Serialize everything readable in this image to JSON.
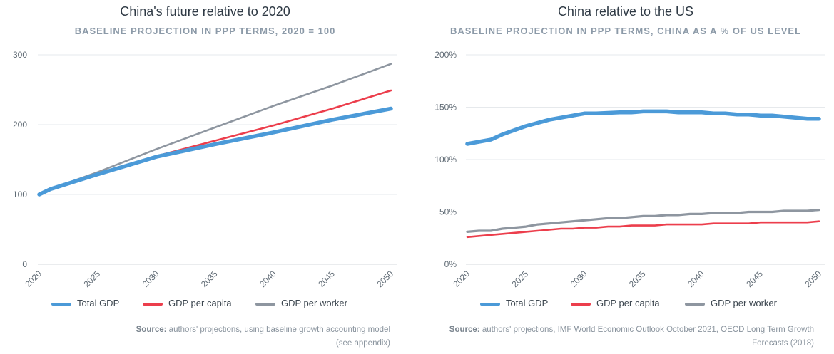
{
  "colors": {
    "total_gdp": "#4b9ad8",
    "gdp_per_capita": "#ec3e4c",
    "gdp_per_worker": "#8e96a0",
    "grid": "#e6e9ec",
    "tick_text": "#5f6a74"
  },
  "chart_data": [
    {
      "type": "line",
      "title": "China's future relative to 2020",
      "subtitle": "BASELINE PROJECTION IN PPP TERMS, 2020 = 100",
      "xlim": [
        2020,
        2050
      ],
      "ylim": [
        0,
        300
      ],
      "x_ticks": [
        "2020",
        "2025",
        "2030",
        "2035",
        "2040",
        "2045",
        "2050"
      ],
      "y_ticks": [
        "0",
        "100",
        "200",
        "300"
      ],
      "grid": true,
      "legend_position": "bottom",
      "series": [
        {
          "name": "Total GDP",
          "key": "total_gdp",
          "x": [
            2020,
            2021,
            2025,
            2030,
            2035,
            2040,
            2045,
            2050
          ],
          "y": [
            100,
            108,
            129,
            154,
            172,
            189,
            207,
            223
          ]
        },
        {
          "name": "GDP per capita",
          "key": "gdp_per_capita",
          "x": [
            2020,
            2021,
            2025,
            2030,
            2035,
            2040,
            2045,
            2050
          ],
          "y": [
            100,
            108,
            129,
            155,
            177,
            199,
            223,
            249
          ]
        },
        {
          "name": "GDP per worker",
          "key": "gdp_per_worker",
          "x": [
            2020,
            2021,
            2025,
            2030,
            2035,
            2040,
            2045,
            2050
          ],
          "y": [
            100,
            108,
            132,
            165,
            196,
            227,
            256,
            287
          ]
        }
      ],
      "source_label": "Source:",
      "source_text": "authors' projections, using baseline growth accounting model",
      "source_text_2": "(see appendix)"
    },
    {
      "type": "line",
      "title": "China relative to the US",
      "subtitle": "BASELINE PROJECTION IN PPP TERMS, CHINA AS A % OF US LEVEL",
      "xlim": [
        2020,
        2050
      ],
      "ylim": [
        0,
        200
      ],
      "x_ticks": [
        "2020",
        "2025",
        "2030",
        "2035",
        "2040",
        "2045",
        "2050"
      ],
      "y_ticks": [
        "0%",
        "50%",
        "100%",
        "150%",
        "200%"
      ],
      "grid": true,
      "legend_position": "bottom",
      "series": [
        {
          "name": "Total GDP",
          "key": "total_gdp",
          "x": [
            2020,
            2022,
            2023,
            2025,
            2027,
            2030,
            2031,
            2033,
            2034,
            2035,
            2037,
            2038,
            2040,
            2041,
            2042,
            2043,
            2044,
            2045,
            2046,
            2047,
            2048,
            2049,
            2050
          ],
          "y": [
            115,
            119,
            124,
            132,
            138,
            144,
            144,
            145,
            145,
            146,
            146,
            145,
            145,
            144,
            144,
            143,
            143,
            142,
            142,
            141,
            140,
            139,
            139
          ]
        },
        {
          "name": "GDP per capita",
          "key": "gdp_per_capita",
          "x": [
            2020,
            2022,
            2025,
            2027,
            2028,
            2029,
            2030,
            2031,
            2032,
            2033,
            2034,
            2035,
            2036,
            2037,
            2038,
            2039,
            2040,
            2041,
            2042,
            2043,
            2044,
            2045,
            2046,
            2047,
            2048,
            2049,
            2050
          ],
          "y": [
            26,
            28,
            31,
            33,
            34,
            34,
            35,
            35,
            36,
            36,
            37,
            37,
            37,
            38,
            38,
            38,
            38,
            39,
            39,
            39,
            39,
            40,
            40,
            40,
            40,
            40,
            41
          ]
        },
        {
          "name": "GDP per worker",
          "key": "gdp_per_worker",
          "x": [
            2020,
            2021,
            2022,
            2023,
            2024,
            2025,
            2026,
            2027,
            2028,
            2029,
            2030,
            2031,
            2032,
            2033,
            2034,
            2035,
            2036,
            2037,
            2038,
            2039,
            2040,
            2041,
            2042,
            2043,
            2044,
            2045,
            2046,
            2047,
            2048,
            2049,
            2050
          ],
          "y": [
            31,
            32,
            32,
            34,
            35,
            36,
            38,
            39,
            40,
            41,
            42,
            43,
            44,
            44,
            45,
            46,
            46,
            47,
            47,
            48,
            48,
            49,
            49,
            49,
            50,
            50,
            50,
            51,
            51,
            51,
            52
          ]
        }
      ],
      "source_label": "Source:",
      "source_text": "authors' projections, IMF World Economic Outlook October 2021, OECD Long Term Growth",
      "source_text_2": "Forecasts (2018)"
    }
  ]
}
